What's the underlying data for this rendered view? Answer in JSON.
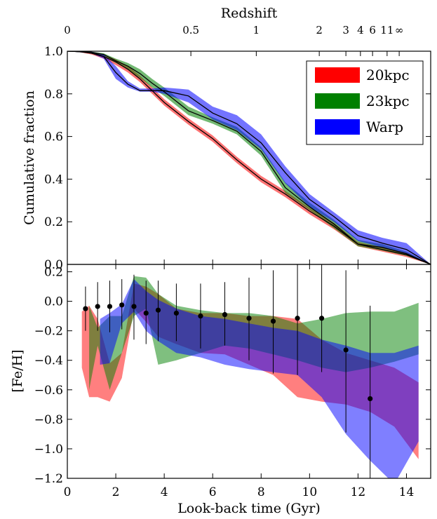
{
  "chart_data": [
    {
      "type": "area",
      "panel": "top",
      "ylabel": "Cumulative fraction",
      "top_xlabel": "Redshift",
      "ylim": [
        0.0,
        1.0
      ],
      "xlim": [
        0,
        15
      ],
      "yticks": [
        0.0,
        0.2,
        0.4,
        0.6,
        0.8,
        1.0
      ],
      "ytick_labels": [
        "0.0",
        "0.2",
        "0.4",
        "0.6",
        "0.8",
        "1.0"
      ],
      "redshift_ticks": [
        {
          "label": "0",
          "t": 0.0
        },
        {
          "label": "0.5",
          "t": 5.1
        },
        {
          "label": "1",
          "t": 7.8
        },
        {
          "label": "2",
          "t": 10.4
        },
        {
          "label": "3",
          "t": 11.5
        },
        {
          "label": "4",
          "t": 12.1
        },
        {
          "label": "6",
          "t": 12.6
        },
        {
          "label": "11",
          "t": 13.2
        },
        {
          "label": "∞",
          "t": 13.7
        }
      ],
      "legend": {
        "placement": "top-right",
        "entries": [
          "20kpc",
          "23kpc",
          "Warp"
        ]
      },
      "series": [
        {
          "name": "20kpc",
          "color": "#ff0000",
          "x": [
            0,
            0.5,
            1,
            1.5,
            2,
            2.5,
            3,
            3.5,
            4,
            5,
            6,
            7,
            8,
            9,
            10,
            11,
            12,
            13,
            14,
            15
          ],
          "lower": [
            1.0,
            0.995,
            0.985,
            0.965,
            0.935,
            0.9,
            0.855,
            0.8,
            0.745,
            0.655,
            0.575,
            0.475,
            0.385,
            0.315,
            0.235,
            0.165,
            0.085,
            0.06,
            0.035,
            0.0
          ],
          "mid": [
            1.0,
            0.998,
            0.99,
            0.975,
            0.95,
            0.915,
            0.87,
            0.815,
            0.76,
            0.67,
            0.59,
            0.49,
            0.4,
            0.33,
            0.25,
            0.18,
            0.095,
            0.07,
            0.045,
            0.0
          ],
          "upper": [
            1.0,
            1.0,
            0.995,
            0.985,
            0.962,
            0.93,
            0.885,
            0.83,
            0.775,
            0.685,
            0.605,
            0.505,
            0.415,
            0.345,
            0.265,
            0.195,
            0.105,
            0.08,
            0.055,
            0.0
          ]
        },
        {
          "name": "23kpc",
          "color": "#008000",
          "x": [
            0,
            0.5,
            1,
            1.5,
            2,
            2.5,
            3,
            3.5,
            4,
            5,
            6,
            7,
            8,
            9,
            10,
            11,
            12,
            13,
            14,
            15
          ],
          "lower": [
            1.0,
            0.995,
            0.99,
            0.975,
            0.945,
            0.915,
            0.875,
            0.83,
            0.79,
            0.7,
            0.66,
            0.61,
            0.51,
            0.335,
            0.255,
            0.17,
            0.085,
            0.065,
            0.04,
            0.0
          ],
          "mid": [
            1.0,
            0.998,
            0.995,
            0.985,
            0.955,
            0.93,
            0.895,
            0.85,
            0.81,
            0.72,
            0.675,
            0.625,
            0.53,
            0.36,
            0.27,
            0.19,
            0.095,
            0.08,
            0.05,
            0.0
          ],
          "upper": [
            1.0,
            1.0,
            0.998,
            0.99,
            0.965,
            0.945,
            0.915,
            0.87,
            0.83,
            0.74,
            0.69,
            0.645,
            0.55,
            0.385,
            0.29,
            0.21,
            0.115,
            0.095,
            0.06,
            0.0
          ]
        },
        {
          "name": "Warp",
          "color": "#0000ff",
          "x": [
            0,
            0.5,
            1,
            1.5,
            2,
            2.5,
            3,
            3.5,
            4,
            5,
            6,
            7,
            8,
            9,
            10,
            11,
            12,
            13,
            14,
            15
          ],
          "lower": [
            1.0,
            0.995,
            0.99,
            0.965,
            0.87,
            0.83,
            0.81,
            0.81,
            0.8,
            0.76,
            0.68,
            0.63,
            0.54,
            0.38,
            0.27,
            0.2,
            0.11,
            0.08,
            0.05,
            0.0
          ],
          "mid": [
            1.0,
            0.998,
            0.995,
            0.975,
            0.9,
            0.845,
            0.815,
            0.815,
            0.815,
            0.79,
            0.71,
            0.66,
            0.57,
            0.43,
            0.305,
            0.225,
            0.135,
            0.1,
            0.07,
            0.0
          ],
          "upper": [
            1.0,
            1.0,
            0.998,
            0.985,
            0.93,
            0.86,
            0.825,
            0.825,
            0.83,
            0.82,
            0.74,
            0.7,
            0.61,
            0.46,
            0.33,
            0.245,
            0.16,
            0.125,
            0.1,
            0.0
          ]
        }
      ]
    },
    {
      "type": "area",
      "panel": "bottom",
      "xlabel": "Look-back time (Gyr)",
      "ylabel": "[Fe/H]",
      "xlim": [
        0,
        15
      ],
      "ylim": [
        -1.2,
        0.25
      ],
      "xticks": [
        0,
        2,
        4,
        6,
        8,
        10,
        12,
        14
      ],
      "xtick_labels": [
        "0",
        "2",
        "4",
        "6",
        "8",
        "10",
        "12",
        "14"
      ],
      "yticks": [
        -1.2,
        -1.0,
        -0.8,
        -0.6,
        -0.4,
        -0.2,
        0.0,
        0.2
      ],
      "ytick_labels": [
        "−1.2",
        "−1.0",
        "−0.8",
        "−0.6",
        "−0.4",
        "−0.2",
        "0.0",
        "0.2"
      ],
      "series": [
        {
          "name": "20kpc",
          "color": "#ff0000",
          "x": [
            0.6,
            0.9,
            1.25,
            1.75,
            2.25,
            2.75,
            3.25,
            3.75,
            4.5,
            5.5,
            6.5,
            7.5,
            8.5,
            9.5,
            10.5,
            11.5,
            12.5,
            13.5,
            14.5
          ],
          "lower": [
            -0.45,
            -0.65,
            -0.65,
            -0.68,
            -0.52,
            -0.05,
            -0.14,
            -0.24,
            -0.29,
            -0.35,
            -0.36,
            -0.43,
            -0.5,
            -0.65,
            -0.68,
            -0.7,
            -0.75,
            -0.85,
            -1.07
          ],
          "upper": [
            -0.07,
            -0.03,
            -0.12,
            -0.42,
            -0.35,
            0.12,
            0.1,
            0.05,
            -0.05,
            -0.08,
            -0.08,
            -0.1,
            -0.1,
            -0.12,
            -0.26,
            -0.35,
            -0.4,
            -0.45,
            -0.55
          ]
        },
        {
          "name": "23kpc",
          "color": "#008000",
          "x": [
            0.9,
            1.25,
            1.75,
            2.25,
            2.75,
            3.25,
            3.75,
            4.5,
            5.5,
            6.5,
            7.5,
            8.5,
            9.5,
            10.5,
            11.5,
            12.5,
            13.5,
            14.5
          ],
          "lower": [
            -0.6,
            -0.3,
            -0.6,
            -0.35,
            -0.1,
            -0.05,
            -0.43,
            -0.4,
            -0.35,
            -0.3,
            -0.32,
            -0.36,
            -0.4,
            -0.45,
            -0.48,
            -0.45,
            -0.41,
            -0.36
          ],
          "upper": [
            -0.03,
            -0.18,
            -0.1,
            -0.1,
            0.17,
            0.16,
            0.05,
            -0.03,
            -0.06,
            -0.08,
            -0.08,
            -0.1,
            -0.15,
            -0.12,
            -0.08,
            -0.07,
            -0.07,
            -0.01
          ]
        },
        {
          "name": "Warp",
          "color": "#0000ff",
          "x": [
            1.35,
            1.75,
            2.25,
            2.75,
            3.25,
            3.75,
            4.5,
            5.5,
            6.5,
            7.5,
            8.5,
            9.5,
            10.5,
            11.5,
            12.5,
            13.5,
            14.5
          ],
          "lower": [
            -0.43,
            -0.42,
            -0.15,
            -0.07,
            -0.2,
            -0.27,
            -0.35,
            -0.38,
            -0.43,
            -0.46,
            -0.48,
            -0.5,
            -0.65,
            -0.9,
            -1.08,
            -1.24,
            -0.95
          ],
          "upper": [
            -0.12,
            -0.08,
            -0.02,
            0.15,
            0.07,
            0.01,
            -0.05,
            -0.1,
            -0.12,
            -0.15,
            -0.18,
            -0.2,
            -0.26,
            -0.3,
            -0.35,
            -0.35,
            -0.3
          ]
        }
      ],
      "points": {
        "name": "data",
        "x": [
          0.75,
          1.25,
          1.75,
          2.25,
          2.75,
          3.25,
          3.75,
          4.5,
          5.5,
          6.5,
          7.5,
          8.5,
          9.5,
          10.5,
          11.5,
          12.5
        ],
        "y": [
          -0.05,
          -0.035,
          -0.035,
          -0.025,
          -0.035,
          -0.08,
          -0.06,
          -0.08,
          -0.1,
          -0.09,
          -0.115,
          -0.135,
          -0.115,
          -0.115,
          -0.33,
          -0.66
        ],
        "ylow": [
          -0.2,
          -0.2,
          -0.21,
          -0.19,
          -0.26,
          -0.29,
          -0.27,
          -0.27,
          -0.32,
          -0.3,
          -0.4,
          -0.49,
          -0.5,
          -0.48,
          -0.89,
          -1.2
        ],
        "yhigh": [
          0.1,
          0.13,
          0.14,
          0.15,
          0.18,
          0.14,
          0.14,
          0.12,
          0.12,
          0.13,
          0.16,
          0.21,
          0.3,
          0.3,
          0.21,
          -0.03
        ]
      }
    }
  ]
}
